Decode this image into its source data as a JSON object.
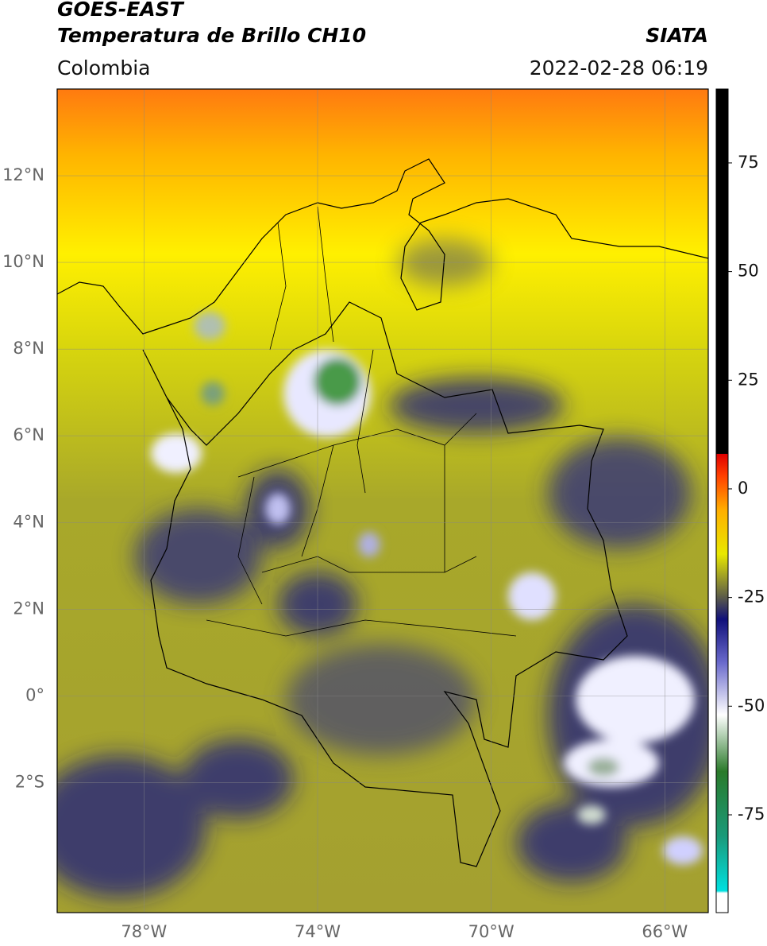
{
  "chart_data": {
    "type": "map",
    "title": "GOES-EAST",
    "subtitle": "Temperatura de Brillo CH10",
    "source": "SIATA",
    "region": "Colombia",
    "timestamp": "2022-02-28 06:19",
    "xlim": [
      -80,
      -65
    ],
    "ylim": [
      -5,
      14
    ],
    "xticks": [
      {
        "value": -78,
        "label": "78°W"
      },
      {
        "value": -74,
        "label": "74°W"
      },
      {
        "value": -70,
        "label": "70°W"
      },
      {
        "value": -66,
        "label": "66°W"
      }
    ],
    "yticks": [
      {
        "value": -2,
        "label": "2°S"
      },
      {
        "value": 0,
        "label": "0°"
      },
      {
        "value": 2,
        "label": "2°N"
      },
      {
        "value": 4,
        "label": "4°N"
      },
      {
        "value": 6,
        "label": "6°N"
      },
      {
        "value": 8,
        "label": "8°N"
      },
      {
        "value": 10,
        "label": "10°N"
      },
      {
        "value": 12,
        "label": "12°N"
      }
    ],
    "grid": true,
    "colorbar": {
      "lim": [
        -97.5,
        92
      ],
      "ticks": [
        -75,
        -50,
        -25,
        0,
        25,
        50,
        75
      ],
      "stops": [
        {
          "value": -97.5,
          "color": "#ffffff"
        },
        {
          "value": -93,
          "color": "#ffffff"
        },
        {
          "value": -92.5,
          "color": "#00e0e0"
        },
        {
          "value": -80,
          "color": "#1a9a7a"
        },
        {
          "value": -65,
          "color": "#2a7a2a"
        },
        {
          "value": -52,
          "color": "#ffffff"
        },
        {
          "value": -40,
          "color": "#6a6acc"
        },
        {
          "value": -30,
          "color": "#10107a"
        },
        {
          "value": -25,
          "color": "#5a5a4a"
        },
        {
          "value": -15,
          "color": "#e8e800"
        },
        {
          "value": -5,
          "color": "#ffb000"
        },
        {
          "value": 3,
          "color": "#ff4000"
        },
        {
          "value": 8,
          "color": "#e00000"
        },
        {
          "value": 8.1,
          "color": "#000000"
        },
        {
          "value": 92,
          "color": "#000000"
        }
      ]
    }
  }
}
